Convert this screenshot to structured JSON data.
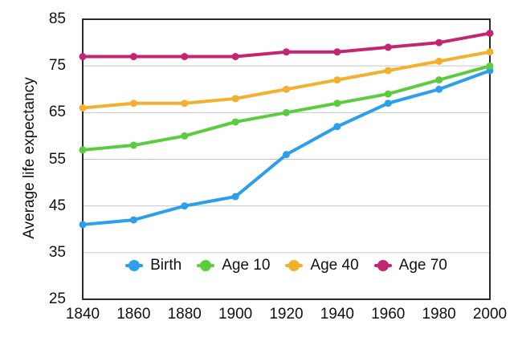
{
  "chart_data": {
    "type": "line",
    "title": "",
    "xlabel": "",
    "ylabel": "Average life expectancy",
    "x": [
      1840,
      1860,
      1880,
      1900,
      1920,
      1940,
      1960,
      1980,
      2000
    ],
    "series": [
      {
        "name": "Birth",
        "color": "#2B9EEC",
        "values": [
          41,
          42,
          45,
          47,
          56,
          62,
          67,
          70,
          74
        ]
      },
      {
        "name": "Age 10",
        "color": "#5CCC3F",
        "values": [
          57,
          58,
          60,
          63,
          65,
          67,
          69,
          72,
          75
        ]
      },
      {
        "name": "Age 40",
        "color": "#F3B02F",
        "values": [
          66,
          67,
          67,
          68,
          70,
          72,
          74,
          76,
          78
        ]
      },
      {
        "name": "Age 70",
        "color": "#C32572",
        "values": [
          77,
          77,
          77,
          77,
          78,
          78,
          79,
          80,
          82
        ]
      }
    ],
    "xlim": [
      1840,
      2000
    ],
    "ylim": [
      25,
      85
    ],
    "yticks": [
      25,
      35,
      45,
      55,
      65,
      75,
      85
    ],
    "xticks": [
      1840,
      1860,
      1880,
      1900,
      1920,
      1940,
      1960,
      1980,
      2000
    ],
    "grid": "horizontal",
    "grid_values": [
      35,
      45,
      55,
      65,
      75
    ],
    "grid_color": "#c6c6c6",
    "axis_color": "#2b2b2b",
    "text_color": "#111111",
    "legend_position": "bottom-inside",
    "line_width": 4,
    "marker_radius": 4.5
  }
}
